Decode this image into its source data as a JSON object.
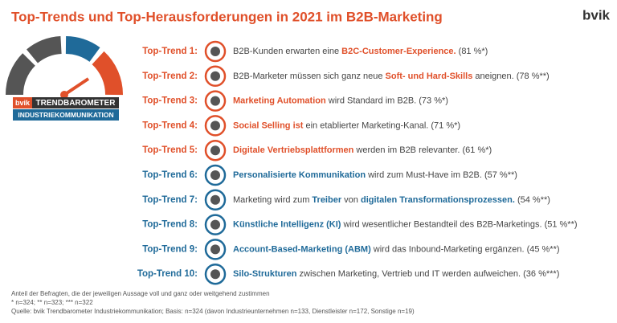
{
  "header": {
    "title": "Top-Trends und Top-Herausforderungen in 2021 im B2B-Marketing",
    "brand": "bvik"
  },
  "logo": {
    "brand": "bvik",
    "name": "TRENDBAROMETER",
    "subtitle": "INDUSTRIEKOMMUNIKATION"
  },
  "items": [
    {
      "label": "Top-Trend 1:",
      "color": "#e0502a",
      "segments": [
        {
          "text": "B2B-Kunden erwarten eine ",
          "strong": false
        },
        {
          "text": "B2C-Customer-Experience.",
          "strong": true
        },
        {
          "text": " (81 %*)",
          "strong": false
        }
      ]
    },
    {
      "label": "Top-Trend 2:",
      "color": "#e0502a",
      "segments": [
        {
          "text": "B2B-Marketer müssen sich ganz neue ",
          "strong": false
        },
        {
          "text": "Soft- und Hard-Skills",
          "strong": true
        },
        {
          "text": " aneignen. (78 %**)",
          "strong": false
        }
      ]
    },
    {
      "label": "Top-Trend 3:",
      "color": "#e0502a",
      "segments": [
        {
          "text": "Marketing Automation",
          "strong": true
        },
        {
          "text": " wird Standard im B2B. (73 %*)",
          "strong": false
        }
      ]
    },
    {
      "label": "Top-Trend 4:",
      "color": "#e0502a",
      "segments": [
        {
          "text": "Social Selling ist",
          "strong": true
        },
        {
          "text": " ein etablierter Marketing-Kanal. (71 %*)",
          "strong": false
        }
      ]
    },
    {
      "label": "Top-Trend 5:",
      "color": "#e0502a",
      "segments": [
        {
          "text": "Digitale Vertriebsplattformen",
          "strong": true
        },
        {
          "text": " werden im B2B relevanter. (61 %*)",
          "strong": false
        }
      ]
    },
    {
      "label": "Top-Trend 6:",
      "color": "#1f6a99",
      "segments": [
        {
          "text": "Personalisierte Kommunikation",
          "strong": true
        },
        {
          "text": " wird zum Must-Have im B2B. (57 %**)",
          "strong": false
        }
      ]
    },
    {
      "label": "Top-Trend 7:",
      "color": "#1f6a99",
      "segments": [
        {
          "text": "Marketing wird zum ",
          "strong": false
        },
        {
          "text": "Treiber",
          "strong": true
        },
        {
          "text": " von ",
          "strong": false
        },
        {
          "text": "digitalen Transformationsprozessen.",
          "strong": true
        },
        {
          "text": " (54 %**)",
          "strong": false
        }
      ]
    },
    {
      "label": "Top-Trend 8:",
      "color": "#1f6a99",
      "segments": [
        {
          "text": "Künstliche Intelligenz (KI)",
          "strong": true
        },
        {
          "text": " wird wesentlicher Bestandteil des B2B-Marketings. (51 %**)",
          "strong": false
        }
      ]
    },
    {
      "label": "Top-Trend 9:",
      "color": "#1f6a99",
      "segments": [
        {
          "text": "Account-Based-Marketing (ABM)",
          "strong": true
        },
        {
          "text": " wird das Inbound-Marketing ergänzen. (45 %**)",
          "strong": false
        }
      ]
    },
    {
      "label": "Top-Trend 10:",
      "color": "#1f6a99",
      "segments": [
        {
          "text": "Silo-Strukturen",
          "strong": true
        },
        {
          "text": " zwischen Marketing, Vertrieb und IT werden aufweichen. (36 %***)",
          "strong": false
        }
      ]
    }
  ],
  "footnotes": [
    "Anteil der Befragten, die der jeweiligen Aussage voll und ganz oder weitgehend zustimmen",
    "* n=324; ** n=323; *** n=322",
    "Quelle: bvik Trendbarometer Industriekommunikation; Basis: n=324 (davon Industrieunternehmen n=133, Dienstleister n=172, Sonstige n=19)"
  ]
}
